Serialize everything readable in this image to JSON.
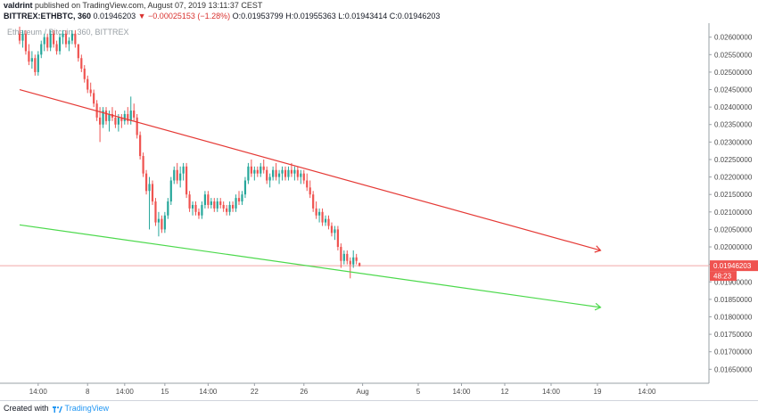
{
  "header": {
    "author": "valdrint",
    "published_text": "published on TradingView.com, August 07, 2019 13:11:37 CEST",
    "symbol_line": "BITTREX:ETHBTC, 360",
    "last": "0.01946203",
    "change": "−0.00025153 (−1.28%)",
    "ohlc": "O:0.01953799 H:0.01955363 L:0.01943414 C:0.01946203"
  },
  "chart_watermark": "Ethereum / Bitcoin, 360, BITTREX",
  "footer": {
    "created_with": "Created with",
    "brand": "TradingView"
  },
  "colors": {
    "up": "#26a69a",
    "down": "#ef5350",
    "resistance_line": "#e53935",
    "support_line": "#4cd94c",
    "price_label_bg": "#ef5350",
    "axis_text": "#4a4a4a"
  },
  "chart_data": {
    "type": "candlestick",
    "symbol": "ETHBTC",
    "exchange": "BITTREX",
    "interval": "360",
    "y_axis": {
      "ylim": [
        0.0161,
        0.0264
      ],
      "ticks": [
        "0.02600000",
        "0.02550000",
        "0.02500000",
        "0.02450000",
        "0.02400000",
        "0.02350000",
        "0.02300000",
        "0.02250000",
        "0.02200000",
        "0.02150000",
        "0.02100000",
        "0.02050000",
        "0.02000000",
        "0.01950000",
        "0.01900000",
        "0.01850000",
        "0.01800000",
        "0.01750000",
        "0.01700000",
        "0.01650000"
      ],
      "tick_values": [
        0.026,
        0.0255,
        0.025,
        0.0245,
        0.024,
        0.0235,
        0.023,
        0.0225,
        0.022,
        0.0215,
        0.021,
        0.0205,
        0.02,
        0.0195,
        0.019,
        0.0185,
        0.018,
        0.0175,
        0.017,
        0.0165
      ]
    },
    "x_axis": {
      "ticks": [
        "14:00",
        "8",
        "14:00",
        "15",
        "14:00",
        "22",
        "26",
        "Aug",
        "5",
        "14:00",
        "12",
        "14:00",
        "19",
        "14:00"
      ],
      "tick_index": [
        6,
        22,
        34,
        47,
        61,
        76,
        92,
        111,
        129,
        143,
        157,
        172,
        187,
        203
      ]
    },
    "last_price": {
      "value": 0.01946203,
      "label": "0.01946203",
      "countdown": "48:23"
    },
    "candles_ohlc": [
      [
        0.0261,
        0.0263,
        0.0258,
        0.0259
      ],
      [
        0.0259,
        0.0262,
        0.0257,
        0.0261
      ],
      [
        0.0261,
        0.0262,
        0.0255,
        0.0256
      ],
      [
        0.0256,
        0.0258,
        0.0252,
        0.0253
      ],
      [
        0.0253,
        0.0256,
        0.0251,
        0.0254
      ],
      [
        0.0254,
        0.0255,
        0.0249,
        0.025
      ],
      [
        0.025,
        0.0256,
        0.0249,
        0.0255
      ],
      [
        0.0255,
        0.0259,
        0.0254,
        0.0258
      ],
      [
        0.0258,
        0.0261,
        0.0256,
        0.026
      ],
      [
        0.026,
        0.0261,
        0.0256,
        0.0257
      ],
      [
        0.0257,
        0.0262,
        0.0256,
        0.0261
      ],
      [
        0.0261,
        0.0262,
        0.0257,
        0.0258
      ],
      [
        0.0258,
        0.0259,
        0.0255,
        0.0256
      ],
      [
        0.0256,
        0.0261,
        0.0255,
        0.026
      ],
      [
        0.026,
        0.0262,
        0.0258,
        0.0261
      ],
      [
        0.0261,
        0.0262,
        0.0257,
        0.0258
      ],
      [
        0.0258,
        0.026,
        0.0256,
        0.0259
      ],
      [
        0.0259,
        0.0262,
        0.0258,
        0.0261
      ],
      [
        0.0261,
        0.0262,
        0.0257,
        0.0258
      ],
      [
        0.0258,
        0.0258,
        0.0253,
        0.0254
      ],
      [
        0.0254,
        0.0255,
        0.025,
        0.0251
      ],
      [
        0.0251,
        0.0252,
        0.0247,
        0.0248
      ],
      [
        0.0248,
        0.0249,
        0.0244,
        0.0245
      ],
      [
        0.0245,
        0.0247,
        0.0243,
        0.0244
      ],
      [
        0.0244,
        0.0245,
        0.024,
        0.0241
      ],
      [
        0.0241,
        0.0242,
        0.0236,
        0.0237
      ],
      [
        0.0237,
        0.024,
        0.023,
        0.0235
      ],
      [
        0.0235,
        0.024,
        0.0234,
        0.0239
      ],
      [
        0.0239,
        0.024,
        0.0235,
        0.0236
      ],
      [
        0.0236,
        0.0239,
        0.0233,
        0.0238
      ],
      [
        0.0238,
        0.024,
        0.0236,
        0.0237
      ],
      [
        0.0237,
        0.0239,
        0.0234,
        0.0235
      ],
      [
        0.0235,
        0.0238,
        0.0233,
        0.0237
      ],
      [
        0.0237,
        0.0238,
        0.0234,
        0.0236
      ],
      [
        0.0236,
        0.0239,
        0.0235,
        0.0238
      ],
      [
        0.0238,
        0.024,
        0.0235,
        0.0236
      ],
      [
        0.0236,
        0.0243,
        0.0235,
        0.0239
      ],
      [
        0.0239,
        0.0241,
        0.0236,
        0.0237
      ],
      [
        0.0237,
        0.0238,
        0.0231,
        0.0232
      ],
      [
        0.0232,
        0.0233,
        0.0225,
        0.0226
      ],
      [
        0.0226,
        0.0227,
        0.022,
        0.0221
      ],
      [
        0.0221,
        0.0222,
        0.0215,
        0.0216
      ],
      [
        0.0216,
        0.022,
        0.0205,
        0.0218
      ],
      [
        0.0218,
        0.0219,
        0.0212,
        0.0213
      ],
      [
        0.0213,
        0.0214,
        0.0206,
        0.0207
      ],
      [
        0.0207,
        0.021,
        0.0203,
        0.0208
      ],
      [
        0.0208,
        0.0209,
        0.0204,
        0.0205
      ],
      [
        0.0205,
        0.021,
        0.0204,
        0.0209
      ],
      [
        0.0209,
        0.0214,
        0.0208,
        0.0213
      ],
      [
        0.0213,
        0.022,
        0.0212,
        0.0219
      ],
      [
        0.0219,
        0.0223,
        0.0218,
        0.0222
      ],
      [
        0.0222,
        0.0224,
        0.0218,
        0.0219
      ],
      [
        0.0219,
        0.0223,
        0.0217,
        0.0221
      ],
      [
        0.0221,
        0.0224,
        0.0219,
        0.0223
      ],
      [
        0.0223,
        0.0224,
        0.0214,
        0.0215
      ],
      [
        0.0215,
        0.0216,
        0.021,
        0.0211
      ],
      [
        0.0211,
        0.0213,
        0.0209,
        0.0212
      ],
      [
        0.0212,
        0.0213,
        0.0209,
        0.021
      ],
      [
        0.021,
        0.0211,
        0.0208,
        0.0209
      ],
      [
        0.0209,
        0.0213,
        0.0208,
        0.0212
      ],
      [
        0.0212,
        0.0216,
        0.0211,
        0.0215
      ],
      [
        0.0215,
        0.0216,
        0.0211,
        0.0212
      ],
      [
        0.0212,
        0.0214,
        0.0211,
        0.0213
      ],
      [
        0.0213,
        0.0214,
        0.021,
        0.0211
      ],
      [
        0.0211,
        0.0214,
        0.021,
        0.0213
      ],
      [
        0.0213,
        0.0214,
        0.0211,
        0.0212
      ],
      [
        0.0212,
        0.0213,
        0.021,
        0.0211
      ],
      [
        0.0211,
        0.0212,
        0.0209,
        0.021
      ],
      [
        0.021,
        0.0213,
        0.0209,
        0.0212
      ],
      [
        0.0212,
        0.0213,
        0.021,
        0.0211
      ],
      [
        0.0211,
        0.0215,
        0.021,
        0.0214
      ],
      [
        0.0214,
        0.0216,
        0.0212,
        0.0213
      ],
      [
        0.0213,
        0.0216,
        0.0212,
        0.0215
      ],
      [
        0.0215,
        0.022,
        0.0214,
        0.0219
      ],
      [
        0.0219,
        0.0224,
        0.0218,
        0.0223
      ],
      [
        0.0223,
        0.0225,
        0.022,
        0.0221
      ],
      [
        0.0221,
        0.0223,
        0.0219,
        0.0222
      ],
      [
        0.0222,
        0.0223,
        0.022,
        0.0221
      ],
      [
        0.0221,
        0.0224,
        0.022,
        0.0223
      ],
      [
        0.0223,
        0.0225,
        0.0221,
        0.0222
      ],
      [
        0.0222,
        0.0223,
        0.0218,
        0.0219
      ],
      [
        0.0219,
        0.0221,
        0.0217,
        0.022
      ],
      [
        0.022,
        0.0223,
        0.0219,
        0.0222
      ],
      [
        0.0222,
        0.0224,
        0.0219,
        0.022
      ],
      [
        0.022,
        0.0222,
        0.0218,
        0.0221
      ],
      [
        0.0221,
        0.0223,
        0.0219,
        0.0222
      ],
      [
        0.0222,
        0.0223,
        0.0219,
        0.022
      ],
      [
        0.022,
        0.0223,
        0.0219,
        0.0222
      ],
      [
        0.0222,
        0.0224,
        0.022,
        0.0221
      ],
      [
        0.0221,
        0.0223,
        0.0219,
        0.0222
      ],
      [
        0.0222,
        0.0223,
        0.0219,
        0.022
      ],
      [
        0.022,
        0.0222,
        0.0218,
        0.0221
      ],
      [
        0.0221,
        0.0222,
        0.0218,
        0.0219
      ],
      [
        0.0219,
        0.0221,
        0.0216,
        0.0217
      ],
      [
        0.0217,
        0.0219,
        0.0214,
        0.0215
      ],
      [
        0.0215,
        0.0216,
        0.021,
        0.0211
      ],
      [
        0.0211,
        0.0213,
        0.0208,
        0.0209
      ],
      [
        0.0209,
        0.0211,
        0.0207,
        0.021
      ],
      [
        0.021,
        0.0211,
        0.0206,
        0.0207
      ],
      [
        0.0207,
        0.0209,
        0.0206,
        0.0208
      ],
      [
        0.0208,
        0.0209,
        0.0205,
        0.0206
      ],
      [
        0.0206,
        0.0207,
        0.0203,
        0.0204
      ],
      [
        0.0204,
        0.0206,
        0.0202,
        0.0205
      ],
      [
        0.0205,
        0.0206,
        0.0199,
        0.02
      ],
      [
        0.02,
        0.0201,
        0.0194,
        0.0196
      ],
      [
        0.0196,
        0.0199,
        0.0195,
        0.0198
      ],
      [
        0.0198,
        0.0199,
        0.0195,
        0.0196
      ],
      [
        0.0196,
        0.0197,
        0.0191,
        0.0195
      ],
      [
        0.0195,
        0.0199,
        0.0194,
        0.0197
      ],
      [
        0.0197,
        0.0198,
        0.0195,
        0.0196
      ],
      [
        0.019538,
        0.019554,
        0.019434,
        0.019462
      ]
    ],
    "trend_lines": [
      {
        "name": "resistance",
        "color": "#e53935",
        "from": {
          "index": 0,
          "price": 0.0245
        },
        "to": {
          "index": 188,
          "price": 0.0199
        }
      },
      {
        "name": "support",
        "color": "#4cd94c",
        "from": {
          "index": 0,
          "price": 0.02063
        },
        "to": {
          "index": 188,
          "price": 0.01827
        }
      }
    ]
  }
}
